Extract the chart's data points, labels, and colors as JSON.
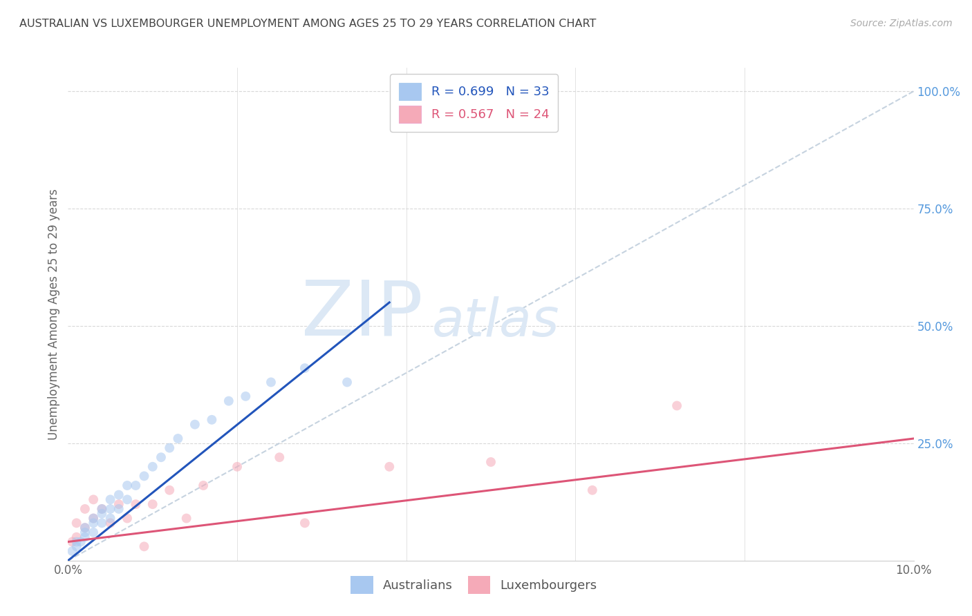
{
  "title": "AUSTRALIAN VS LUXEMBOURGER UNEMPLOYMENT AMONG AGES 25 TO 29 YEARS CORRELATION CHART",
  "source": "Source: ZipAtlas.com",
  "ylabel": "Unemployment Among Ages 25 to 29 years",
  "xlim": [
    0.0,
    0.1
  ],
  "ylim": [
    0.0,
    1.05
  ],
  "y_ticks_right": [
    0.0,
    0.25,
    0.5,
    0.75,
    1.0
  ],
  "y_tick_labels_right": [
    "",
    "25.0%",
    "50.0%",
    "75.0%",
    "100.0%"
  ],
  "aus_R": 0.699,
  "aus_N": 33,
  "lux_R": 0.567,
  "lux_N": 24,
  "aus_color": "#a8c8f0",
  "lux_color": "#f5aab8",
  "aus_line_color": "#2255bb",
  "lux_line_color": "#dd5577",
  "diag_line_color": "#b8c8d8",
  "title_color": "#444444",
  "source_color": "#aaaaaa",
  "grid_color": "#d8d8d8",
  "legend_labels": [
    "Australians",
    "Luxembourgers"
  ],
  "marker_size": 100,
  "marker_alpha": 0.55,
  "aus_scatter_x": [
    0.0005,
    0.001,
    0.001,
    0.0015,
    0.002,
    0.002,
    0.002,
    0.003,
    0.003,
    0.003,
    0.004,
    0.004,
    0.004,
    0.005,
    0.005,
    0.005,
    0.006,
    0.006,
    0.007,
    0.007,
    0.008,
    0.009,
    0.01,
    0.011,
    0.012,
    0.013,
    0.015,
    0.017,
    0.019,
    0.021,
    0.024,
    0.028,
    0.033
  ],
  "aus_scatter_y": [
    0.02,
    0.03,
    0.04,
    0.04,
    0.05,
    0.06,
    0.07,
    0.06,
    0.08,
    0.09,
    0.08,
    0.1,
    0.11,
    0.09,
    0.11,
    0.13,
    0.11,
    0.14,
    0.13,
    0.16,
    0.16,
    0.18,
    0.2,
    0.22,
    0.24,
    0.26,
    0.29,
    0.3,
    0.34,
    0.35,
    0.38,
    0.41,
    0.38
  ],
  "lux_scatter_x": [
    0.0005,
    0.001,
    0.001,
    0.002,
    0.002,
    0.003,
    0.003,
    0.004,
    0.005,
    0.006,
    0.007,
    0.008,
    0.009,
    0.01,
    0.012,
    0.014,
    0.016,
    0.02,
    0.025,
    0.028,
    0.038,
    0.05,
    0.062,
    0.072
  ],
  "lux_scatter_y": [
    0.04,
    0.05,
    0.08,
    0.07,
    0.11,
    0.09,
    0.13,
    0.11,
    0.08,
    0.12,
    0.09,
    0.12,
    0.03,
    0.12,
    0.15,
    0.09,
    0.16,
    0.2,
    0.22,
    0.08,
    0.2,
    0.21,
    0.15,
    0.33
  ],
  "aus_line_x": [
    0.0,
    0.038
  ],
  "aus_line_y": [
    0.0,
    0.55
  ],
  "lux_line_x": [
    0.0,
    0.1
  ],
  "lux_line_y": [
    0.04,
    0.26
  ],
  "diag_line_x": [
    0.0,
    0.1
  ],
  "diag_line_y": [
    0.0,
    1.0
  ],
  "x_ticks": [
    0.0,
    0.02,
    0.04,
    0.06,
    0.08,
    0.1
  ],
  "x_tick_labels": [
    "0.0%",
    "",
    "",
    "",
    "",
    "10.0%"
  ]
}
